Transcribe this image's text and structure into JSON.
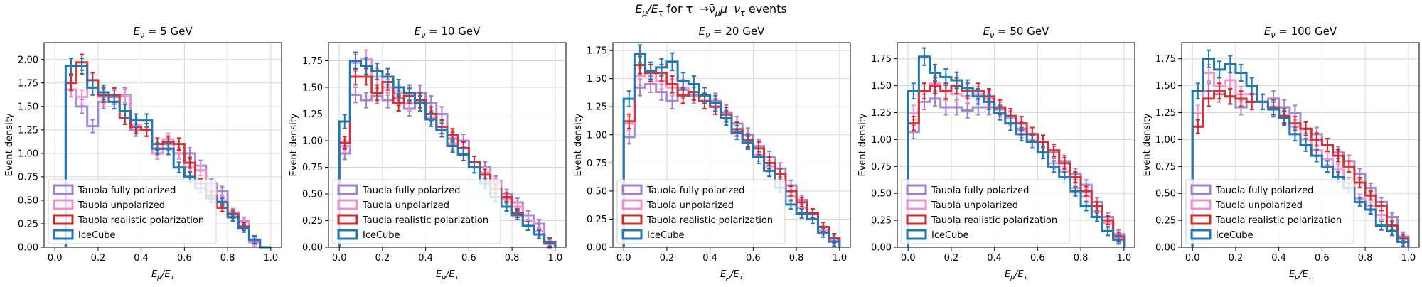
{
  "figure": {
    "suptitle": "E_μ/E_τ for τ⁻→ν̄_μ μ⁻ ν_τ events",
    "suptitle_main": "E",
    "suptitle_sub1": "μ",
    "suptitle_slash": "/E",
    "suptitle_sub2": "τ",
    "suptitle_rest": " for τ",
    "suptitle_sup1": "−",
    "suptitle_arrow": "→ν̄",
    "suptitle_sub3": "μ",
    "suptitle_mu": "μ",
    "suptitle_sup2": "−",
    "suptitle_nu": "ν",
    "suptitle_sub4": "τ",
    "suptitle_end": " events"
  },
  "colors": {
    "fully_polarized": "#9e7fd0",
    "unpolarized": "#f08fd0",
    "realistic": "#d62728",
    "icecube": "#1f77b4",
    "grid": "#d9d9d9"
  },
  "legend_labels": [
    "Tauola fully polarized",
    "Tauola unpolarized",
    "Tauola realistic polarization",
    "IceCube"
  ],
  "chart_data": [
    {
      "type": "histogram-step",
      "title": "E_ν = 5 GeV",
      "title_energy": "5 GeV",
      "xlabel": "E_μ/E_τ",
      "ylabel": "Event density",
      "xlim": [
        -0.05,
        1.05
      ],
      "ylim": [
        0,
        2.18
      ],
      "xticks": [
        "0.0",
        "0.2",
        "0.4",
        "0.6",
        "0.8",
        "1.0"
      ],
      "yticks": [
        "0.00",
        "0.25",
        "0.50",
        "0.75",
        "1.00",
        "1.25",
        "1.50",
        "1.75",
        "2.00"
      ],
      "legend_position": "lower left",
      "grid": true,
      "bins": [
        0.05,
        0.1,
        0.15,
        0.2,
        0.25,
        0.3,
        0.35,
        0.4,
        0.45,
        0.5,
        0.55,
        0.6,
        0.65,
        0.7,
        0.75,
        0.8,
        0.85,
        0.9,
        0.95,
        1.0
      ],
      "series": [
        {
          "name": "Tauola fully polarized",
          "values": [
            1.68,
            1.5,
            1.29,
            1.55,
            1.6,
            1.62,
            1.25,
            1.25,
            1.0,
            1.1,
            1.0,
            1.0,
            0.87,
            0.68,
            0.6,
            0.37,
            0.28,
            0.07,
            0.0
          ]
        },
        {
          "name": "Tauola unpolarized",
          "values": [
            1.68,
            1.6,
            1.78,
            1.6,
            1.62,
            1.61,
            1.3,
            1.25,
            1.0,
            1.15,
            1.0,
            0.86,
            0.82,
            0.6,
            0.5,
            0.32,
            0.27,
            0.05,
            0.0
          ]
        },
        {
          "name": "Tauola realistic polarization",
          "values": [
            1.75,
            1.97,
            1.78,
            1.62,
            1.62,
            1.38,
            1.28,
            1.25,
            1.1,
            1.12,
            1.1,
            0.9,
            0.68,
            0.55,
            0.42,
            0.35,
            0.22,
            0.08,
            0.0
          ]
        },
        {
          "name": "IceCube",
          "values": [
            1.93,
            1.93,
            1.7,
            1.65,
            1.55,
            1.45,
            1.35,
            1.35,
            1.05,
            1.05,
            0.85,
            0.75,
            0.63,
            0.52,
            0.48,
            0.32,
            0.2,
            0.08,
            0.0
          ]
        }
      ]
    },
    {
      "type": "histogram-step",
      "title": "E_ν = 10 GeV",
      "title_energy": "10 GeV",
      "xlabel": "E_μ/E_τ",
      "ylabel": "Event density",
      "xlim": [
        -0.05,
        1.05
      ],
      "ylim": [
        0,
        1.92
      ],
      "xticks": [
        "0.0",
        "0.2",
        "0.4",
        "0.6",
        "0.8",
        "1.0"
      ],
      "yticks": [
        "0.00",
        "0.25",
        "0.50",
        "0.75",
        "1.00",
        "1.25",
        "1.50",
        "1.75"
      ],
      "legend_position": "lower left",
      "grid": true,
      "bins": [
        0.0,
        0.05,
        0.1,
        0.15,
        0.2,
        0.25,
        0.3,
        0.35,
        0.4,
        0.45,
        0.5,
        0.55,
        0.6,
        0.65,
        0.7,
        0.75,
        0.8,
        0.85,
        0.9,
        0.95,
        1.0
      ],
      "series": [
        {
          "name": "Tauola fully polarized",
          "values": [
            0.88,
            1.43,
            1.38,
            1.42,
            1.38,
            1.4,
            1.3,
            1.45,
            1.35,
            1.25,
            1.02,
            1.0,
            0.8,
            0.75,
            0.62,
            0.5,
            0.42,
            0.3,
            0.22,
            0.05
          ]
        },
        {
          "name": "Tauola unpolarized",
          "values": [
            0.95,
            1.73,
            1.77,
            1.6,
            1.5,
            1.45,
            1.35,
            1.38,
            1.22,
            1.1,
            0.97,
            0.93,
            0.75,
            0.7,
            0.6,
            0.45,
            0.38,
            0.25,
            0.15,
            0.03
          ]
        },
        {
          "name": "Tauola realistic polarization",
          "values": [
            0.98,
            1.6,
            1.6,
            1.45,
            1.55,
            1.35,
            1.42,
            1.38,
            1.25,
            1.13,
            1.05,
            0.93,
            0.8,
            0.68,
            0.55,
            0.47,
            0.32,
            0.2,
            0.12,
            0.05
          ]
        },
        {
          "name": "IceCube",
          "values": [
            1.18,
            1.75,
            1.7,
            1.65,
            1.6,
            1.5,
            1.45,
            1.35,
            1.2,
            1.1,
            0.95,
            0.87,
            0.75,
            0.6,
            0.47,
            0.38,
            0.3,
            0.2,
            0.12,
            0.04
          ]
        }
      ]
    },
    {
      "type": "histogram-step",
      "title": "E_ν = 20 GeV",
      "title_energy": "20 GeV",
      "xlabel": "E_μ/E_τ",
      "ylabel": "Event density",
      "xlim": [
        -0.05,
        1.05
      ],
      "ylim": [
        0,
        1.82
      ],
      "xticks": [
        "0.0",
        "0.2",
        "0.4",
        "0.6",
        "0.8",
        "1.0"
      ],
      "yticks": [
        "0.00",
        "0.25",
        "0.50",
        "0.75",
        "1.00",
        "1.25",
        "1.50",
        "1.75"
      ],
      "legend_position": "lower left",
      "grid": true,
      "bins": [
        0.0,
        0.05,
        0.1,
        0.15,
        0.2,
        0.25,
        0.3,
        0.35,
        0.4,
        0.45,
        0.5,
        0.55,
        0.6,
        0.65,
        0.7,
        0.75,
        0.8,
        0.85,
        0.9,
        0.95,
        1.0
      ],
      "series": [
        {
          "name": "Tauola fully polarized",
          "values": [
            0.98,
            1.42,
            1.45,
            1.38,
            1.3,
            1.4,
            1.35,
            1.35,
            1.3,
            1.2,
            1.1,
            1.0,
            0.9,
            0.8,
            0.7,
            0.55,
            0.42,
            0.3,
            0.18,
            0.07
          ]
        },
        {
          "name": "Tauola unpolarized",
          "values": [
            1.1,
            1.52,
            1.55,
            1.48,
            1.42,
            1.42,
            1.38,
            1.35,
            1.25,
            1.15,
            1.05,
            0.95,
            0.82,
            0.72,
            0.58,
            0.45,
            0.35,
            0.25,
            0.15,
            0.07
          ]
        },
        {
          "name": "Tauola realistic polarization",
          "values": [
            1.12,
            1.62,
            1.55,
            1.55,
            1.45,
            1.35,
            1.38,
            1.3,
            1.25,
            1.18,
            1.05,
            0.95,
            0.88,
            0.75,
            0.65,
            0.5,
            0.4,
            0.3,
            0.18,
            0.08
          ]
        },
        {
          "name": "IceCube",
          "values": [
            1.32,
            1.72,
            1.57,
            1.6,
            1.65,
            1.48,
            1.45,
            1.35,
            1.28,
            1.15,
            1.02,
            0.93,
            0.8,
            0.68,
            0.53,
            0.38,
            0.3,
            0.25,
            0.13,
            0.05
          ]
        }
      ]
    },
    {
      "type": "histogram-step",
      "title": "E_ν = 50 GeV",
      "title_energy": "50 GeV",
      "xlabel": "E_μ/E_τ",
      "ylabel": "Event density",
      "xlim": [
        -0.05,
        1.05
      ],
      "ylim": [
        0,
        1.9
      ],
      "xticks": [
        "0.0",
        "0.2",
        "0.4",
        "0.6",
        "0.8",
        "1.0"
      ],
      "yticks": [
        "0.00",
        "0.25",
        "0.50",
        "0.75",
        "1.00",
        "1.25",
        "1.50",
        "1.75"
      ],
      "legend_position": "lower left",
      "grid": true,
      "bins": [
        0.0,
        0.05,
        0.1,
        0.15,
        0.2,
        0.25,
        0.3,
        0.35,
        0.4,
        0.45,
        0.5,
        0.55,
        0.6,
        0.65,
        0.7,
        0.75,
        0.8,
        0.85,
        0.9,
        0.95,
        1.0
      ],
      "series": [
        {
          "name": "Tauola fully polarized",
          "values": [
            1.07,
            1.35,
            1.38,
            1.3,
            1.3,
            1.27,
            1.3,
            1.3,
            1.28,
            1.2,
            1.1,
            1.05,
            0.98,
            0.88,
            0.8,
            0.68,
            0.58,
            0.42,
            0.28,
            0.12
          ]
        },
        {
          "name": "Tauola unpolarized",
          "values": [
            1.25,
            1.45,
            1.52,
            1.45,
            1.42,
            1.4,
            1.42,
            1.38,
            1.3,
            1.2,
            1.08,
            1.0,
            0.88,
            0.78,
            0.7,
            0.55,
            0.47,
            0.33,
            0.22,
            0.08
          ]
        },
        {
          "name": "Tauola realistic polarization",
          "values": [
            1.15,
            1.45,
            1.5,
            1.45,
            1.5,
            1.45,
            1.45,
            1.4,
            1.3,
            1.22,
            1.15,
            1.05,
            0.98,
            0.9,
            0.78,
            0.65,
            0.52,
            0.38,
            0.25,
            0.1
          ]
        },
        {
          "name": "IceCube",
          "values": [
            1.45,
            1.77,
            1.62,
            1.58,
            1.55,
            1.48,
            1.4,
            1.35,
            1.25,
            1.15,
            1.05,
            0.98,
            0.88,
            0.75,
            0.65,
            0.52,
            0.38,
            0.28,
            0.15,
            0.07
          ]
        }
      ]
    },
    {
      "type": "histogram-step",
      "title": "E_ν = 100 GeV",
      "title_energy": "100 GeV",
      "xlabel": "E_μ/E_τ",
      "ylabel": "Event density",
      "xlim": [
        -0.05,
        1.05
      ],
      "ylim": [
        0,
        1.9
      ],
      "xticks": [
        "0.0",
        "0.2",
        "0.4",
        "0.6",
        "0.8",
        "1.0"
      ],
      "yticks": [
        "0.00",
        "0.25",
        "0.50",
        "0.75",
        "1.00",
        "1.25",
        "1.50",
        "1.75"
      ],
      "legend_position": "lower left",
      "grid": true,
      "bins": [
        0.0,
        0.05,
        0.1,
        0.15,
        0.2,
        0.25,
        0.3,
        0.35,
        0.4,
        0.45,
        0.5,
        0.55,
        0.6,
        0.65,
        0.7,
        0.75,
        0.8,
        0.85,
        0.9,
        0.95,
        1.0
      ],
      "series": [
        {
          "name": "Tauola fully polarized",
          "values": [
            1.12,
            1.45,
            1.42,
            1.4,
            1.3,
            1.35,
            1.35,
            1.38,
            1.3,
            1.25,
            1.1,
            1.05,
            0.95,
            0.88,
            0.8,
            0.68,
            0.55,
            0.42,
            0.28,
            0.1
          ]
        },
        {
          "name": "Tauola unpolarized",
          "values": [
            1.25,
            1.62,
            1.5,
            1.55,
            1.42,
            1.42,
            1.35,
            1.3,
            1.22,
            1.12,
            1.0,
            0.9,
            0.82,
            0.72,
            0.6,
            0.45,
            0.38,
            0.3,
            0.2,
            0.08
          ]
        },
        {
          "name": "Tauola realistic polarization",
          "values": [
            1.12,
            1.38,
            1.45,
            1.4,
            1.38,
            1.35,
            1.35,
            1.3,
            1.22,
            1.15,
            1.1,
            1.0,
            0.95,
            0.85,
            0.75,
            0.6,
            0.48,
            0.38,
            0.2,
            0.08
          ]
        },
        {
          "name": "IceCube",
          "values": [
            1.45,
            1.75,
            1.65,
            1.7,
            1.62,
            1.5,
            1.35,
            1.28,
            1.2,
            1.05,
            0.95,
            0.85,
            0.75,
            0.65,
            0.55,
            0.42,
            0.35,
            0.2,
            0.15,
            0.05
          ]
        }
      ]
    }
  ]
}
